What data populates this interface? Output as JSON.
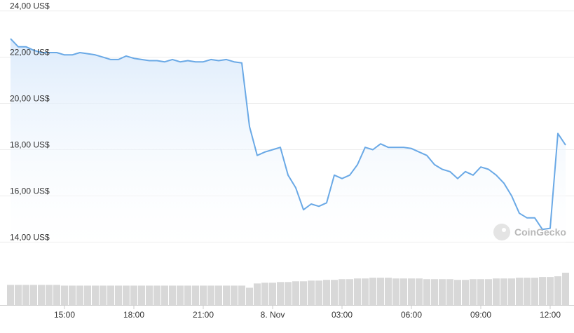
{
  "chart_data": {
    "type": "line",
    "watermark": "CoinGecko",
    "x": [
      "12:40",
      "13:00",
      "13:20",
      "13:40",
      "14:00",
      "14:20",
      "14:40",
      "15:00",
      "15:20",
      "15:40",
      "16:00",
      "16:20",
      "16:40",
      "17:00",
      "17:20",
      "17:40",
      "18:00",
      "18:20",
      "18:40",
      "19:00",
      "19:20",
      "19:40",
      "20:00",
      "20:20",
      "20:40",
      "21:00",
      "21:20",
      "21:40",
      "22:00",
      "22:20",
      "22:40",
      "23:00",
      "23:20",
      "23:40",
      "00:00",
      "00:20",
      "00:40",
      "01:00",
      "01:20",
      "01:40",
      "02:00",
      "02:20",
      "02:40",
      "03:00",
      "03:20",
      "03:40",
      "04:00",
      "04:20",
      "04:40",
      "05:00",
      "05:20",
      "05:40",
      "06:00",
      "06:20",
      "06:40",
      "07:00",
      "07:20",
      "07:40",
      "08:00",
      "08:20",
      "08:40",
      "09:00",
      "09:20",
      "09:40",
      "10:00",
      "10:20",
      "10:40",
      "11:00",
      "11:20",
      "11:40",
      "12:00",
      "12:20",
      "12:40"
    ],
    "values": [
      22.8,
      22.45,
      22.45,
      22.3,
      22.2,
      22.2,
      22.2,
      22.1,
      22.1,
      22.2,
      22.15,
      22.1,
      22.0,
      21.9,
      21.9,
      22.05,
      21.95,
      21.9,
      21.85,
      21.85,
      21.8,
      21.9,
      21.8,
      21.85,
      21.8,
      21.8,
      21.9,
      21.85,
      21.9,
      21.8,
      21.75,
      19.0,
      17.75,
      17.9,
      18.0,
      18.1,
      16.9,
      16.35,
      15.4,
      15.65,
      15.55,
      15.7,
      16.9,
      16.75,
      16.9,
      17.35,
      18.1,
      18.0,
      18.25,
      18.1,
      18.1,
      18.1,
      18.05,
      17.9,
      17.75,
      17.35,
      17.15,
      17.05,
      16.75,
      17.05,
      16.9,
      17.25,
      17.15,
      16.9,
      16.55,
      16.0,
      15.25,
      15.05,
      15.05,
      14.55,
      14.6,
      18.7,
      18.2
    ],
    "color": "#6aa9e6",
    "volumes": [
      28,
      28,
      28,
      28,
      28,
      28,
      28,
      27,
      27,
      27,
      27,
      27,
      27,
      27,
      27,
      27,
      27,
      27,
      27,
      27,
      27,
      27,
      27,
      27,
      27,
      27,
      27,
      27,
      27,
      27,
      27,
      24,
      30,
      31,
      31,
      32,
      32,
      33,
      33,
      34,
      34,
      35,
      35,
      36,
      36,
      37,
      37,
      38,
      38,
      38,
      37,
      37,
      37,
      37,
      36,
      36,
      36,
      36,
      35,
      35,
      36,
      36,
      36,
      37,
      37,
      37,
      38,
      38,
      38,
      39,
      39,
      40,
      45
    ],
    "volume_color": "#d8d8d8",
    "ylim": [
      13.8,
      24.2
    ],
    "yticks": [
      {
        "value": 14,
        "label": "14,00 US$"
      },
      {
        "value": 16,
        "label": "16,00 US$"
      },
      {
        "value": 18,
        "label": "18,00 US$"
      },
      {
        "value": 20,
        "label": "20,00 US$"
      },
      {
        "value": 22,
        "label": "22,00 US$"
      },
      {
        "value": 24,
        "label": "24,00 US$"
      }
    ],
    "xticks": [
      "15:00",
      "18:00",
      "21:00",
      {
        "value": "00:00",
        "label": "8. Nov"
      },
      "03:00",
      "06:00",
      "09:00",
      "12:00"
    ],
    "grid": true
  }
}
